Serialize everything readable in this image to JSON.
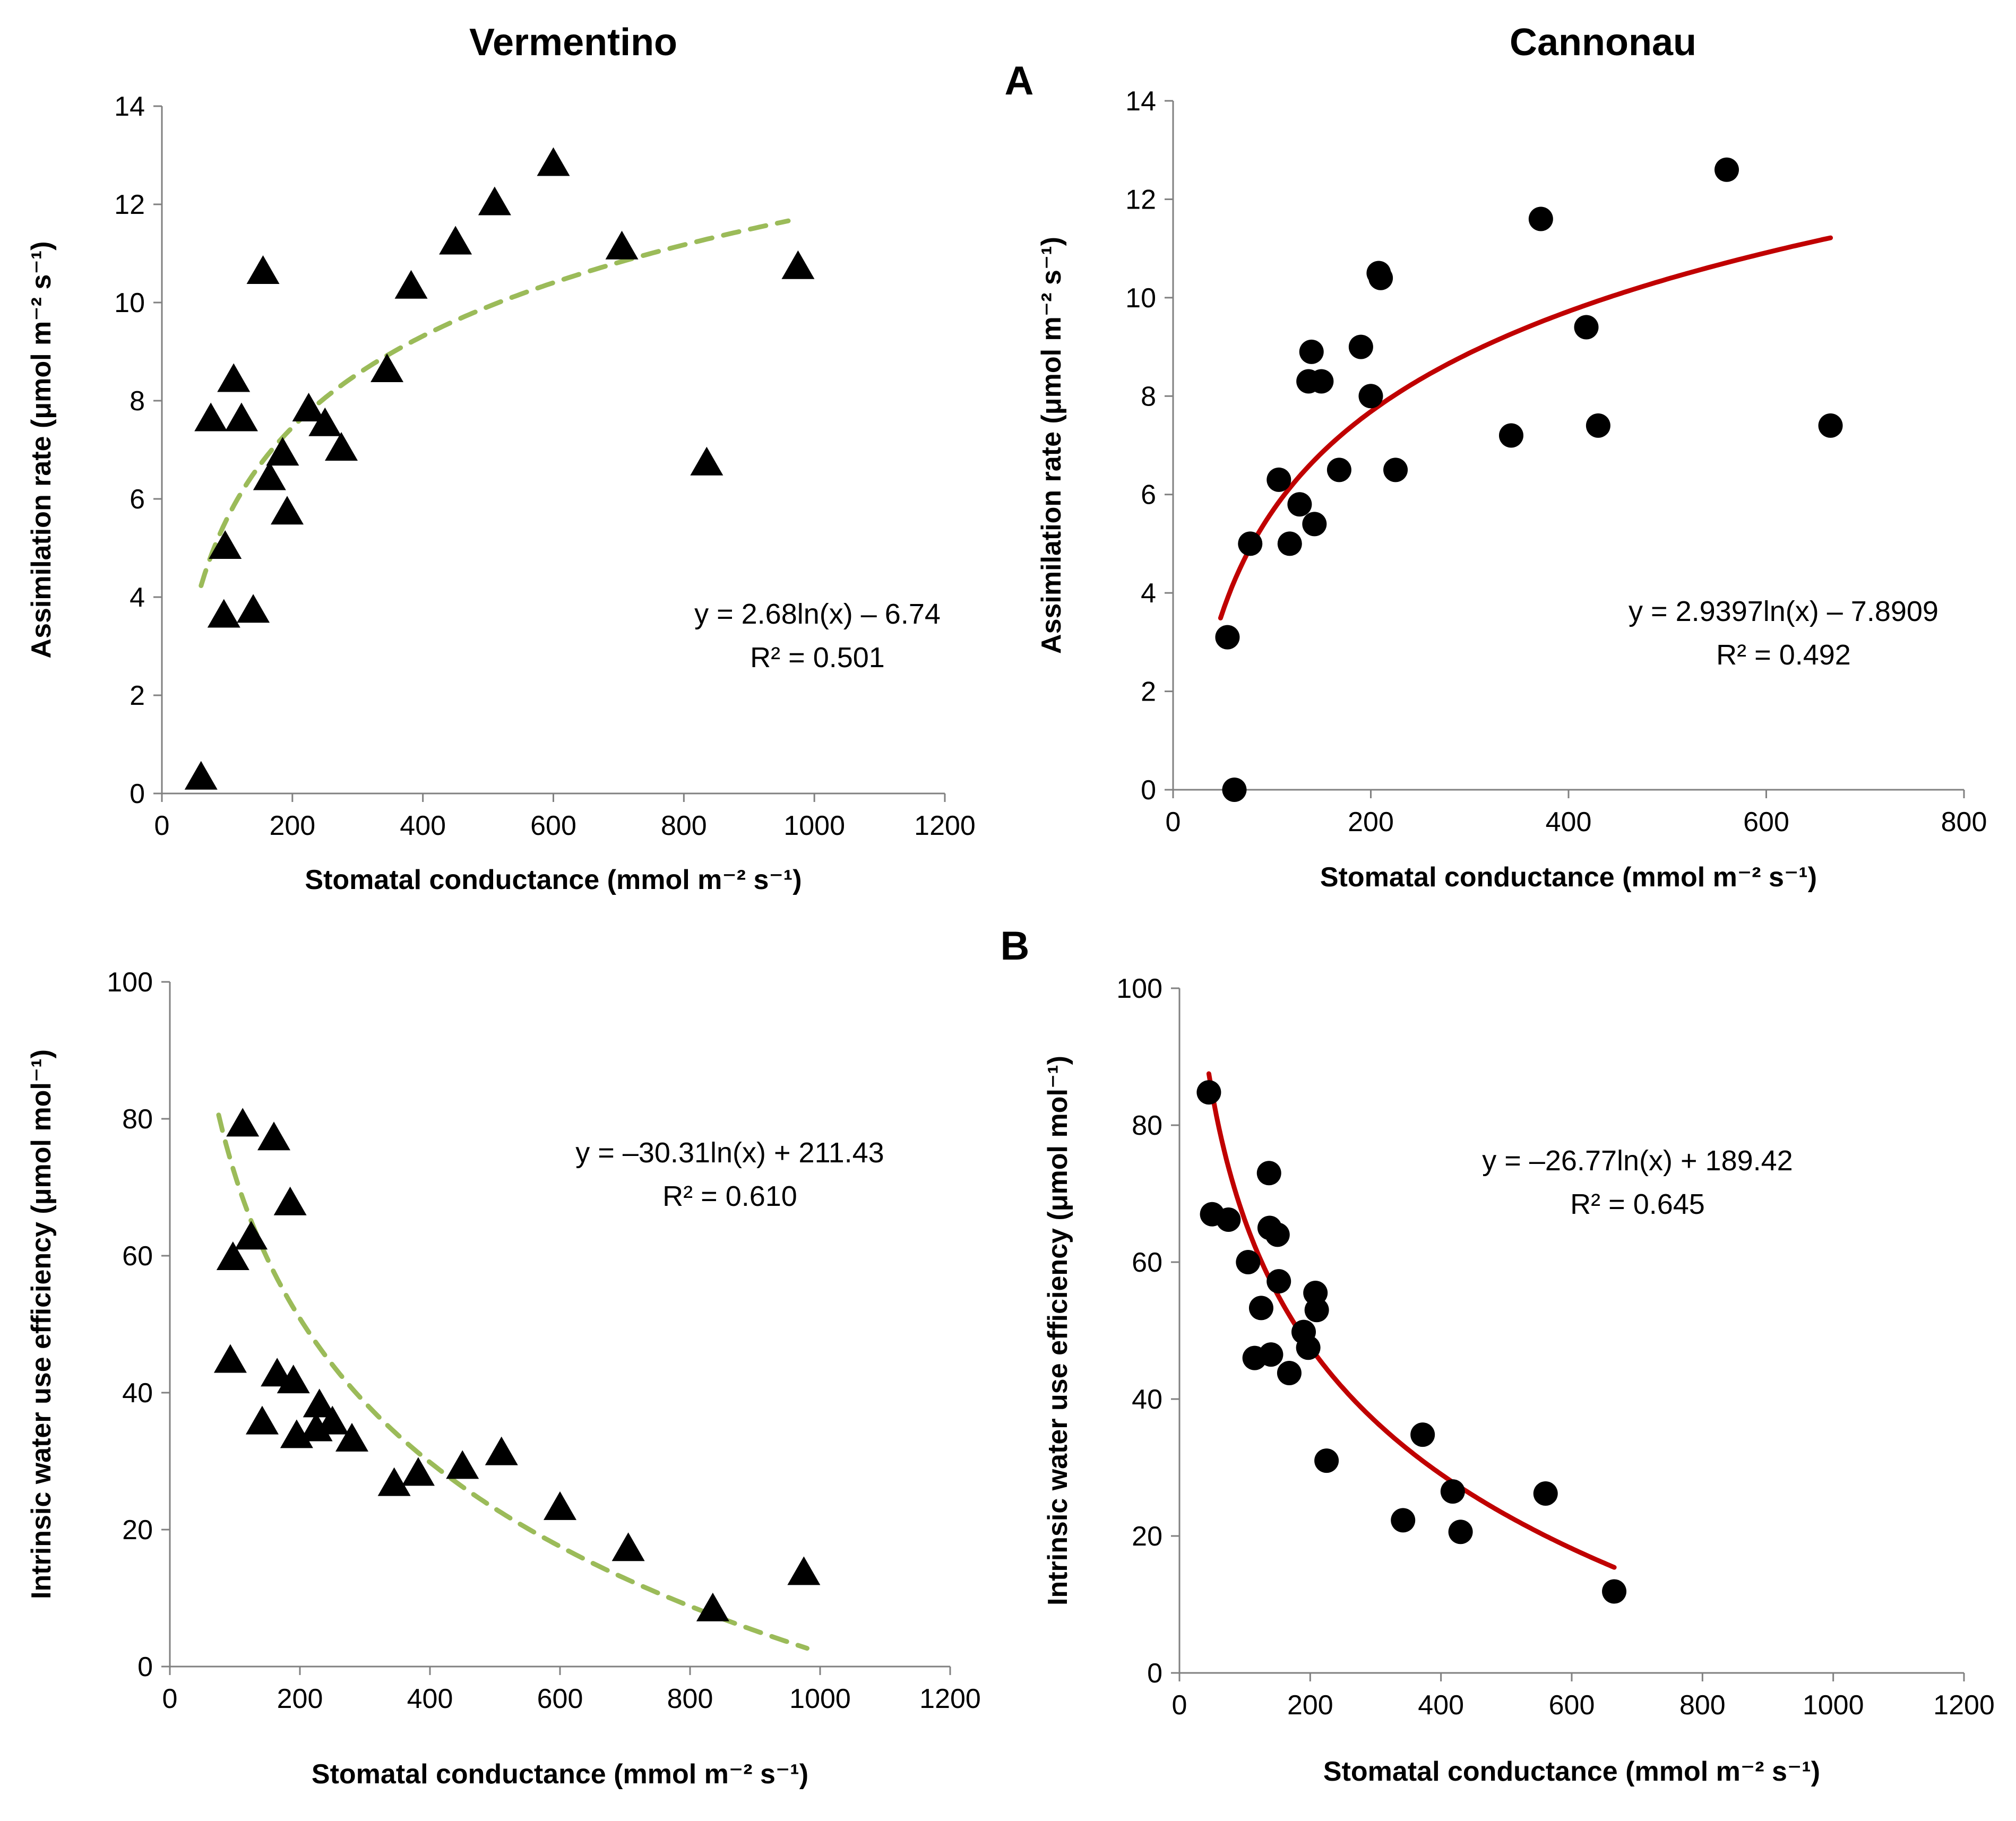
{
  "figure": {
    "column_titles": [
      "Vermentino",
      "Cannonau"
    ],
    "panel_labels": [
      "A",
      "B"
    ]
  },
  "chart_data": [
    {
      "id": "vermentino_assimilation",
      "type": "scatter",
      "column": "Vermentino",
      "marker": "triangle",
      "xlabel": "Stomatal conductance (mmol m⁻² s⁻¹)",
      "ylabel": "Assimilation rate  (μmol m⁻² s⁻¹)",
      "xlim": [
        0,
        1200
      ],
      "ylim": [
        0,
        14
      ],
      "xticks": [
        "0",
        "200",
        "400",
        "600",
        "800",
        "1000",
        "1200"
      ],
      "yticks": [
        "0",
        "2",
        "4",
        "6",
        "8",
        "10",
        "12",
        "14"
      ],
      "points": [
        [
          60,
          0.3
        ],
        [
          75,
          7.6
        ],
        [
          95,
          3.6
        ],
        [
          97,
          5.0
        ],
        [
          110,
          8.4
        ],
        [
          122,
          7.6
        ],
        [
          140,
          3.7
        ],
        [
          155,
          10.6
        ],
        [
          165,
          6.4
        ],
        [
          185,
          6.9
        ],
        [
          192,
          5.7
        ],
        [
          225,
          7.8
        ],
        [
          250,
          7.5
        ],
        [
          275,
          7.0
        ],
        [
          345,
          8.6
        ],
        [
          382,
          10.3
        ],
        [
          450,
          11.2
        ],
        [
          510,
          12.0
        ],
        [
          600,
          12.8
        ],
        [
          705,
          11.1
        ],
        [
          835,
          6.7
        ],
        [
          975,
          10.7
        ]
      ],
      "trend": {
        "a": 2.68,
        "b": -6.74,
        "x_range": [
          60,
          960
        ],
        "style": "dashed",
        "color": "#9BBB59"
      },
      "equation": "y = 2.68ln(x) – 6.74",
      "r2": "R² = 0.501"
    },
    {
      "id": "cannonau_assimilation",
      "type": "scatter",
      "column": "Cannonau",
      "marker": "circle",
      "xlabel": "Stomatal conductance (mmol m⁻² s⁻¹)",
      "ylabel": "Assimilation rate  (μmol m⁻² s⁻¹)",
      "xlim": [
        0,
        800
      ],
      "ylim": [
        0,
        14
      ],
      "xticks": [
        "0",
        "200",
        "400",
        "600",
        "800"
      ],
      "yticks": [
        "0",
        "2",
        "4",
        "6",
        "8",
        "10",
        "12",
        "14"
      ],
      "points": [
        [
          55,
          3.1
        ],
        [
          62,
          0.0
        ],
        [
          78,
          5.0
        ],
        [
          107,
          6.3
        ],
        [
          118,
          5.0
        ],
        [
          128,
          5.8
        ],
        [
          137,
          8.3
        ],
        [
          140,
          8.9
        ],
        [
          143,
          5.4
        ],
        [
          150,
          8.3
        ],
        [
          168,
          6.5
        ],
        [
          190,
          9.0
        ],
        [
          200,
          8.0
        ],
        [
          208,
          10.5
        ],
        [
          210,
          10.4
        ],
        [
          225,
          6.5
        ],
        [
          342,
          7.2
        ],
        [
          372,
          11.6
        ],
        [
          418,
          9.4
        ],
        [
          430,
          7.4
        ],
        [
          560,
          12.6
        ],
        [
          665,
          7.4
        ]
      ],
      "trend": {
        "a": 2.9397,
        "b": -7.8909,
        "x_range": [
          48,
          665
        ],
        "style": "solid",
        "color": "#C00000"
      },
      "equation": "y = 2.9397ln(x) – 7.8909",
      "r2": "R² = 0.492"
    },
    {
      "id": "vermentino_wue",
      "type": "scatter",
      "column": "Vermentino",
      "marker": "triangle",
      "xlabel": "Stomatal conductance (mmol m⁻² s⁻¹)",
      "ylabel": "Intrinsic water use efficiency (μmol mol⁻¹)",
      "xlim": [
        0,
        1200
      ],
      "ylim": [
        0,
        100
      ],
      "xticks": [
        "0",
        "200",
        "400",
        "600",
        "800",
        "1000",
        "1200"
      ],
      "yticks": [
        "0",
        "20",
        "40",
        "60",
        "80",
        "100"
      ],
      "points": [
        [
          93,
          44.5
        ],
        [
          97,
          59.5
        ],
        [
          112,
          79
        ],
        [
          125,
          62.5
        ],
        [
          142,
          35.5
        ],
        [
          160,
          77
        ],
        [
          165,
          42.5
        ],
        [
          185,
          67.5
        ],
        [
          190,
          41.5
        ],
        [
          195,
          33.5
        ],
        [
          225,
          34.5
        ],
        [
          230,
          38
        ],
        [
          250,
          35.5
        ],
        [
          280,
          33
        ],
        [
          345,
          26.5
        ],
        [
          382,
          28
        ],
        [
          450,
          29
        ],
        [
          510,
          31
        ],
        [
          600,
          23
        ],
        [
          705,
          17
        ],
        [
          835,
          8.2
        ],
        [
          975,
          13.5
        ]
      ],
      "trend": {
        "a": -30.31,
        "b": 211.43,
        "x_range": [
          75,
          980
        ],
        "style": "dashed",
        "color": "#9BBB59"
      },
      "equation": "y = –30.31ln(x) + 211.43",
      "r2": "R² = 0.610"
    },
    {
      "id": "cannonau_wue",
      "type": "scatter",
      "column": "Cannonau",
      "marker": "circle",
      "xlabel": "Stomatal conductance (mmol m⁻² s⁻¹)",
      "ylabel": "Intrinsic water use efficiency (μmol mol⁻¹)",
      "xlim": [
        0,
        1200
      ],
      "ylim": [
        0,
        100
      ],
      "xticks": [
        "0",
        "200",
        "400",
        "600",
        "800",
        "1000",
        "1200"
      ],
      "yticks": [
        "0",
        "20",
        "40",
        "60",
        "80",
        "100"
      ],
      "points": [
        [
          45,
          84.8
        ],
        [
          50,
          67
        ],
        [
          75,
          66.2
        ],
        [
          105,
          60
        ],
        [
          115,
          46
        ],
        [
          125,
          53.3
        ],
        [
          137,
          73
        ],
        [
          138,
          65
        ],
        [
          140,
          46.5
        ],
        [
          150,
          64
        ],
        [
          152,
          57.2
        ],
        [
          168,
          43.8
        ],
        [
          190,
          49.8
        ],
        [
          197,
          47.5
        ],
        [
          208,
          55.5
        ],
        [
          210,
          53
        ],
        [
          225,
          31
        ],
        [
          342,
          22.3
        ],
        [
          372,
          34.8
        ],
        [
          418,
          26.5
        ],
        [
          430,
          20.6
        ],
        [
          560,
          26.2
        ],
        [
          665,
          11.9
        ]
      ],
      "trend": {
        "a": -26.77,
        "b": 189.42,
        "x_range": [
          45,
          665
        ],
        "style": "solid",
        "color": "#C00000"
      },
      "equation": "y = –26.77ln(x) + 189.42",
      "r2": "R² = 0.645"
    }
  ]
}
